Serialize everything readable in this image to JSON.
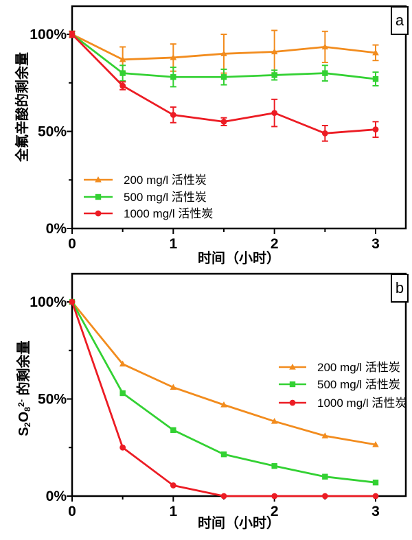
{
  "figure": {
    "background_color": "#ffffff",
    "axis_color": "#000000",
    "panel_labels": [
      "a",
      "b"
    ]
  },
  "chart_data": [
    {
      "type": "line",
      "panel_label": "a",
      "xlabel": "时间（小时）",
      "ylabel": "全氟辛酸的剩余量",
      "x": [
        0,
        0.5,
        1,
        1.5,
        2,
        2.5,
        3
      ],
      "x_tick_labels": [
        "0",
        "1",
        "2",
        "3"
      ],
      "x_tick_values": [
        0,
        1,
        2,
        3
      ],
      "x_minor_ticks": [
        0.5,
        1.5,
        2.5
      ],
      "y_tick_labels": [
        "100%",
        "50%",
        "0%"
      ],
      "y_tick_values": [
        100,
        50,
        0
      ],
      "y_minor_ticks": [
        75,
        25
      ],
      "xlim": [
        0,
        3.3
      ],
      "ylim": [
        0,
        114.5
      ],
      "error_bars": true,
      "legend_position": "inside-bottom-left",
      "series": [
        {
          "name": "200 mg/l 活性炭",
          "color": "#F28C1E",
          "marker": "triangle",
          "values": [
            100,
            87,
            88,
            90,
            91,
            93.5,
            90.5
          ],
          "error": [
            1.5,
            6.5,
            7,
            10,
            11,
            8,
            4
          ]
        },
        {
          "name": "500 mg/l 活性炭",
          "color": "#33D133",
          "marker": "square",
          "values": [
            100,
            80,
            78,
            78,
            79,
            80,
            77
          ],
          "error": [
            1.5,
            4,
            5,
            4,
            2.5,
            4,
            3.5
          ]
        },
        {
          "name": "1000 mg/l 活性炭",
          "color": "#EC1C24",
          "marker": "circle",
          "values": [
            100,
            73.5,
            58.5,
            55,
            59.5,
            49,
            51
          ],
          "error": [
            1.5,
            2,
            4,
            2,
            7,
            4,
            4
          ]
        }
      ]
    },
    {
      "type": "line",
      "panel_label": "b",
      "xlabel": "时间（小时）",
      "ylabel": "S₂O₈²⁻ 的剩余量",
      "ylabel_segments": [
        {
          "text": "S"
        },
        {
          "text": "2",
          "script": "sub"
        },
        {
          "text": "O"
        },
        {
          "text": "8",
          "script": "sub"
        },
        {
          "text": "2-",
          "script": "sup"
        },
        {
          "text": " 的剩余量"
        }
      ],
      "x": [
        0,
        0.5,
        1,
        1.5,
        2,
        2.5,
        3
      ],
      "x_tick_labels": [
        "0",
        "1",
        "2",
        "3"
      ],
      "x_tick_values": [
        0,
        1,
        2,
        3
      ],
      "x_minor_ticks": [
        0.5,
        1.5,
        2.5
      ],
      "y_tick_labels": [
        "100%",
        "50%",
        "0%"
      ],
      "y_tick_values": [
        100,
        50,
        0
      ],
      "y_minor_ticks": [
        75,
        25
      ],
      "xlim": [
        0,
        3.3
      ],
      "ylim": [
        0,
        114.5
      ],
      "error_bars": false,
      "legend_position": "inside-right-middle",
      "series": [
        {
          "name": "200 mg/l 活性炭",
          "color": "#F28C1E",
          "marker": "triangle",
          "values": [
            100,
            68,
            56,
            47,
            38.5,
            31,
            26.5
          ]
        },
        {
          "name": "500 mg/l 活性炭",
          "color": "#33D133",
          "marker": "square",
          "values": [
            100,
            53,
            34,
            21.5,
            15.5,
            10,
            7
          ]
        },
        {
          "name": "1000 mg/l 活性炭",
          "color": "#EC1C24",
          "marker": "circle",
          "values": [
            100,
            25,
            5.5,
            0,
            0,
            0,
            0
          ]
        }
      ]
    }
  ]
}
